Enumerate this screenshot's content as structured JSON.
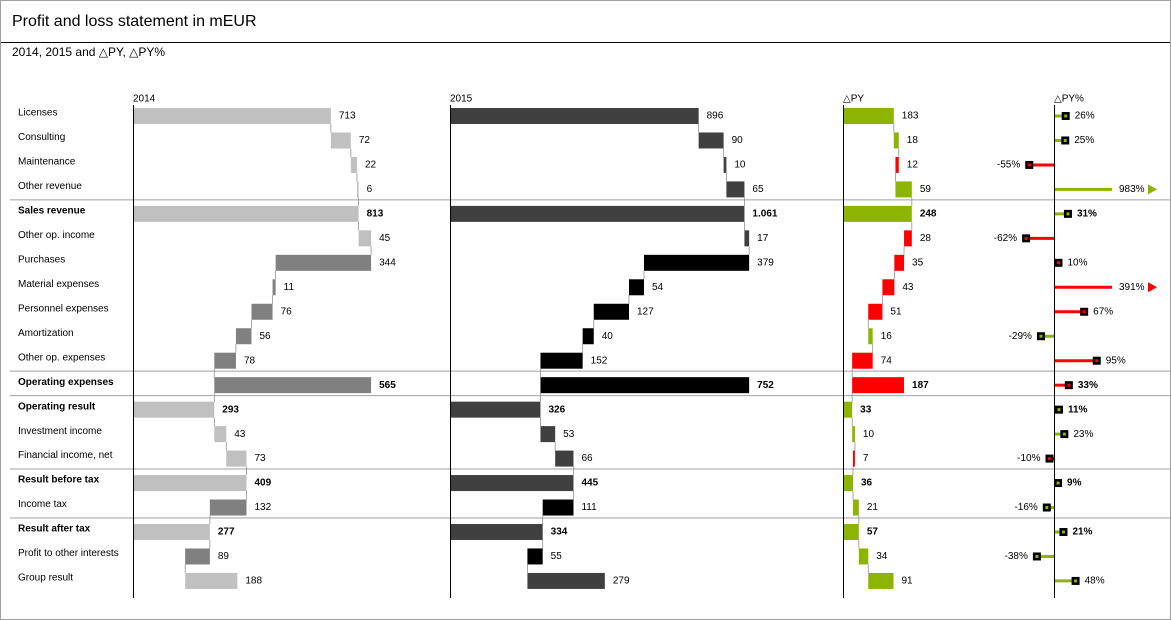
{
  "chart_data": {
    "type": "waterfall",
    "title": "Profit and loss statement in mEUR",
    "subtitle": "2014, 2015 and △PY, △PY%",
    "categories": [
      "Licenses",
      "Consulting",
      "Maintenance",
      "Other revenue",
      "Sales revenue",
      "Other op. income",
      "Purchases",
      "Material expenses",
      "Personnel expenses",
      "Amortization",
      "Other op. expenses",
      "Operating expenses",
      "Operating result",
      "Investment income",
      "Financial income, net",
      "Result before tax",
      "Income tax",
      "Result after tax",
      "Profit to other interests",
      "Group result"
    ],
    "total_rows": [
      4,
      11,
      12,
      15,
      17
    ],
    "series": [
      {
        "name": "2014",
        "type": "waterfall",
        "colors": {
          "positive": "#c0c0c0",
          "negative": "#808080"
        },
        "values": [
          713,
          72,
          22,
          6,
          813,
          45,
          -344,
          -11,
          -76,
          -56,
          -78,
          -565,
          293,
          43,
          73,
          409,
          -132,
          277,
          -89,
          188
        ],
        "value_labels": [
          "713",
          "72",
          "22",
          "6",
          "813",
          "45",
          "344",
          "11",
          "76",
          "56",
          "78",
          "565",
          "293",
          "43",
          "73",
          "409",
          "132",
          "277",
          "89",
          "188"
        ]
      },
      {
        "name": "2015",
        "type": "waterfall",
        "colors": {
          "positive": "#404040",
          "negative": "#000000"
        },
        "values": [
          896,
          90,
          10,
          65,
          1061,
          17,
          -379,
          -54,
          -127,
          -40,
          -152,
          -752,
          326,
          53,
          66,
          445,
          -111,
          334,
          -55,
          279
        ],
        "value_labels": [
          "896",
          "90",
          "10",
          "65",
          "1.061",
          "17",
          "379",
          "54",
          "127",
          "40",
          "152",
          "752",
          "326",
          "53",
          "66",
          "445",
          "111",
          "334",
          "55",
          "279"
        ]
      },
      {
        "name": "△PY",
        "type": "waterfall",
        "colors": {
          "positive": "#8cb400",
          "negative": "#ff0000"
        },
        "values": [
          183,
          18,
          -12,
          59,
          248,
          -28,
          -35,
          -43,
          -51,
          16,
          -74,
          -187,
          33,
          10,
          -7,
          36,
          21,
          57,
          34,
          91
        ],
        "value_labels": [
          "183",
          "18",
          "12",
          "59",
          "248",
          "28",
          "35",
          "43",
          "51",
          "16",
          "74",
          "187",
          "33",
          "10",
          "7",
          "36",
          "21",
          "57",
          "34",
          "91"
        ]
      },
      {
        "name": "△PY%",
        "type": "pin",
        "values": [
          26,
          25,
          -55,
          983,
          31,
          -62,
          10,
          391,
          67,
          -29,
          95,
          33,
          11,
          23,
          -10,
          9,
          -16,
          21,
          -38,
          48
        ],
        "value_labels": [
          "26%",
          "25%",
          "-55%",
          "983%",
          "31%",
          "-62%",
          "10%",
          "391%",
          "67%",
          "-29%",
          "95%",
          "33%",
          "11%",
          "23%",
          "-10%",
          "9%",
          "-16%",
          "21%",
          "-38%",
          "48%"
        ]
      }
    ]
  }
}
